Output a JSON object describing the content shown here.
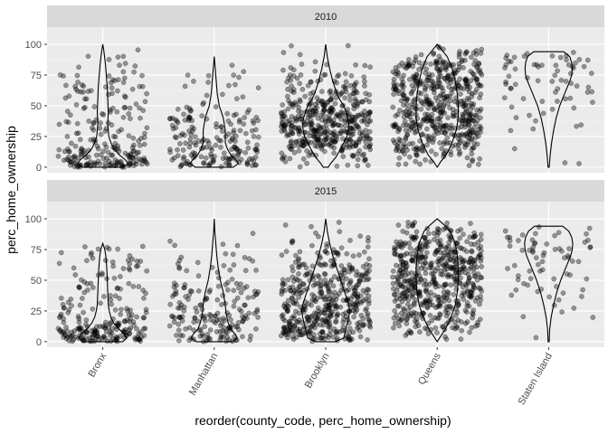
{
  "chart_data": {
    "type": "violin+jitter",
    "facets": [
      "2010",
      "2015"
    ],
    "categories": [
      "Bronx",
      "Manhattan",
      "Brooklyn",
      "Queens",
      "Staten Island"
    ],
    "xlabel": "reorder(county_code, perc_home_ownership)",
    "ylabel": "perc_home_ownership",
    "ylim": [
      0,
      100
    ],
    "yticks": [
      0,
      25,
      50,
      75,
      100
    ],
    "grid": true,
    "approx_point_counts": [
      230,
      190,
      460,
      560,
      70
    ],
    "violins": {
      "2010": [
        {
          "y": [
            0,
            3,
            6,
            10,
            15,
            20,
            25,
            35,
            45,
            55,
            65,
            75,
            85,
            95,
            100
          ],
          "w": [
            0.4,
            0.5,
            0.45,
            0.33,
            0.22,
            0.16,
            0.12,
            0.1,
            0.11,
            0.1,
            0.09,
            0.07,
            0.05,
            0.02,
            0.0
          ]
        },
        {
          "y": [
            0,
            3,
            6,
            10,
            15,
            20,
            25,
            30,
            35,
            40,
            45,
            50,
            60,
            70,
            80,
            90
          ],
          "w": [
            0.38,
            0.48,
            0.43,
            0.33,
            0.26,
            0.22,
            0.22,
            0.22,
            0.2,
            0.18,
            0.14,
            0.1,
            0.06,
            0.04,
            0.02,
            0.0
          ]
        },
        {
          "y": [
            0,
            3,
            8,
            15,
            20,
            25,
            30,
            35,
            40,
            45,
            50,
            55,
            60,
            70,
            80,
            90,
            100
          ],
          "w": [
            0.05,
            0.1,
            0.2,
            0.3,
            0.36,
            0.42,
            0.45,
            0.46,
            0.44,
            0.4,
            0.36,
            0.28,
            0.22,
            0.14,
            0.08,
            0.03,
            0.0
          ]
        },
        {
          "y": [
            0,
            5,
            10,
            20,
            30,
            40,
            50,
            60,
            70,
            80,
            90,
            95,
            100
          ],
          "w": [
            0.0,
            0.08,
            0.18,
            0.3,
            0.38,
            0.42,
            0.42,
            0.4,
            0.36,
            0.3,
            0.2,
            0.1,
            0.0
          ]
        },
        {
          "y": [
            0,
            10,
            20,
            30,
            40,
            50,
            60,
            70,
            75,
            80,
            85,
            90,
            94
          ],
          "w": [
            0.01,
            0.03,
            0.06,
            0.1,
            0.15,
            0.22,
            0.32,
            0.42,
            0.46,
            0.47,
            0.46,
            0.42,
            0.3
          ]
        }
      ],
      "2015": [
        {
          "y": [
            0,
            3,
            6,
            10,
            15,
            20,
            25,
            30,
            40,
            50,
            60,
            70,
            75,
            80
          ],
          "w": [
            0.4,
            0.48,
            0.44,
            0.33,
            0.22,
            0.16,
            0.13,
            0.11,
            0.1,
            0.09,
            0.08,
            0.06,
            0.04,
            0.0
          ]
        },
        {
          "y": [
            0,
            3,
            6,
            10,
            15,
            20,
            25,
            30,
            40,
            50,
            60,
            70,
            80,
            90,
            100
          ],
          "w": [
            0.36,
            0.46,
            0.42,
            0.33,
            0.28,
            0.25,
            0.23,
            0.22,
            0.18,
            0.12,
            0.08,
            0.05,
            0.03,
            0.01,
            0.0
          ]
        },
        {
          "y": [
            0,
            3,
            10,
            20,
            25,
            30,
            35,
            40,
            50,
            60,
            70,
            80,
            90,
            100
          ],
          "w": [
            0.2,
            0.36,
            0.4,
            0.46,
            0.48,
            0.46,
            0.42,
            0.38,
            0.3,
            0.22,
            0.14,
            0.08,
            0.03,
            0.0
          ]
        },
        {
          "y": [
            0,
            5,
            10,
            20,
            30,
            40,
            50,
            60,
            70,
            80,
            90,
            95,
            100
          ],
          "w": [
            0.0,
            0.08,
            0.16,
            0.28,
            0.36,
            0.4,
            0.42,
            0.42,
            0.4,
            0.36,
            0.26,
            0.14,
            0.0
          ]
        },
        {
          "y": [
            0,
            10,
            20,
            30,
            40,
            50,
            60,
            70,
            75,
            80,
            85,
            90,
            94
          ],
          "w": [
            0.01,
            0.02,
            0.05,
            0.1,
            0.16,
            0.24,
            0.34,
            0.44,
            0.47,
            0.48,
            0.46,
            0.4,
            0.28
          ]
        }
      ]
    }
  }
}
